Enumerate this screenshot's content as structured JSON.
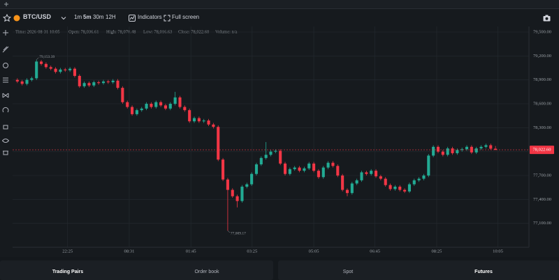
{
  "toolbar": {
    "symbol": "BTC/USD",
    "intervals": [
      "1m",
      "5m",
      "30m",
      "12H"
    ],
    "indicators": "Indicators",
    "fullscreen": "Full screen"
  },
  "info": [
    "Time: 2026-08-31 10:05",
    "Open: 78,036.61",
    "High: 78,070.48",
    "Low: 78,016.63",
    "Close: 78,022.60",
    "Volume: n/a"
  ],
  "bottom_tabs": {
    "left": [
      "Trading Pairs",
      "Order book"
    ],
    "right": [
      "Spot",
      "Futures"
    ]
  },
  "chart_data": {
    "type": "candlestick",
    "up_color": "#22ab94",
    "down_color": "#f23645",
    "grid": true,
    "open": [
      78900,
      78880,
      78850,
      78900,
      78920,
      79130,
      79100,
      79060,
      79040,
      79000,
      79030,
      79020,
      79040,
      78950,
      78820,
      78860,
      78830,
      78870,
      78860,
      78880,
      78870,
      78890,
      78800,
      78620,
      78560,
      78470,
      78520,
      78540,
      78600,
      78560,
      78620,
      78580,
      78540,
      78600,
      78680,
      78560,
      78520,
      78380,
      78420,
      78380,
      78390,
      78340,
      78310,
      77900,
      77650,
      77520,
      77440,
      77380,
      77560,
      77590,
      77720,
      77840,
      77920,
      77960,
      78000,
      78010,
      77850,
      77720,
      77780,
      77800,
      77760,
      77790,
      77850,
      77760,
      77680,
      77800,
      77860,
      77820,
      77700,
      77520,
      77480,
      77600,
      77640,
      77740,
      77720,
      77760,
      77690,
      77660,
      77580,
      77530,
      77560,
      77520,
      77500,
      77590,
      77640,
      77660,
      77700,
      77950,
      78060,
      78000,
      77960,
      78040,
      77980,
      78020,
      78030,
      78060,
      77990,
      78040,
      78060,
      78080,
      78036.61
    ],
    "high": [
      78920,
      78900,
      78920,
      78940,
      79153.39,
      79150,
      79120,
      79080,
      79060,
      79050,
      79050,
      79060,
      79060,
      78970,
      78880,
      78880,
      78890,
      78890,
      78900,
      78900,
      78910,
      78910,
      78820,
      78640,
      78580,
      78540,
      78560,
      78620,
      78620,
      78640,
      78640,
      78600,
      78620,
      78750,
      78700,
      78580,
      78540,
      78440,
      78440,
      78410,
      78410,
      78360,
      78330,
      77920,
      77670,
      77540,
      77460,
      77580,
      77610,
      77740,
      77860,
      77940,
      78120,
      78020,
      78030,
      78030,
      77870,
      77800,
      77820,
      77820,
      77810,
      77870,
      77870,
      77780,
      77820,
      77880,
      77880,
      77840,
      77720,
      77540,
      77620,
      77660,
      77760,
      77760,
      77780,
      77780,
      77710,
      77680,
      77600,
      77580,
      77580,
      77540,
      77610,
      77660,
      77680,
      77720,
      77970,
      78080,
      78080,
      78020,
      78060,
      78060,
      78040,
      78050,
      78080,
      78080,
      78060,
      78080,
      78100,
      78100,
      78070.48
    ],
    "low": [
      78860,
      78830,
      78830,
      78880,
      78900,
      79080,
      79040,
      79020,
      78980,
      78980,
      79000,
      79000,
      78930,
      78800,
      78800,
      78810,
      78810,
      78840,
      78840,
      78850,
      78850,
      78780,
      78600,
      78540,
      78450,
      78450,
      78500,
      78520,
      78540,
      78540,
      78560,
      78520,
      78520,
      78580,
      78540,
      78500,
      78360,
      78360,
      78360,
      78360,
      78320,
      78290,
      77880,
      77630,
      77009.17,
      77420,
      77300,
      77360,
      77540,
      77570,
      77700,
      77820,
      77900,
      77940,
      77980,
      77830,
      77700,
      77700,
      77760,
      77740,
      77740,
      77770,
      77740,
      77660,
      77660,
      77780,
      77800,
      77680,
      77500,
      77440,
      77460,
      77580,
      77620,
      77700,
      77700,
      77670,
      77640,
      77560,
      77510,
      77510,
      77500,
      77480,
      77480,
      77570,
      77620,
      77640,
      77680,
      77930,
      77980,
      77940,
      77940,
      77960,
      77960,
      78000,
      78010,
      77970,
      77970,
      78020,
      78040,
      78020,
      78016.63
    ],
    "close": [
      78880,
      78850,
      78900,
      78920,
      79130,
      79100,
      79060,
      79040,
      79000,
      79030,
      79020,
      79040,
      78950,
      78820,
      78860,
      78830,
      78870,
      78860,
      78880,
      78870,
      78890,
      78800,
      78620,
      78560,
      78470,
      78520,
      78540,
      78600,
      78560,
      78620,
      78580,
      78540,
      78600,
      78680,
      78560,
      78520,
      78380,
      78420,
      78380,
      78390,
      78340,
      78310,
      77900,
      77650,
      77520,
      77440,
      77380,
      77560,
      77590,
      77720,
      77840,
      77920,
      77960,
      78000,
      78010,
      77850,
      77720,
      77780,
      77800,
      77760,
      77790,
      77850,
      77760,
      77680,
      77800,
      77860,
      77820,
      77700,
      77520,
      77480,
      77600,
      77640,
      77740,
      77720,
      77760,
      77690,
      77660,
      77580,
      77530,
      77560,
      77520,
      77500,
      77590,
      77640,
      77660,
      77700,
      77950,
      78060,
      78000,
      77960,
      78040,
      77980,
      78020,
      78030,
      78060,
      77990,
      78040,
      78060,
      78080,
      78036.61,
      78022.6
    ],
    "ylim": [
      76800,
      79570
    ],
    "yticks": [
      {
        "value": 79500,
        "label": "79,500.00"
      },
      {
        "value": 79200,
        "label": "79,200.00"
      },
      {
        "value": 78900,
        "label": "78,900.00"
      },
      {
        "value": 78600,
        "label": "78,600.00"
      },
      {
        "value": 78300,
        "label": "78,300.00"
      },
      {
        "value": 78000,
        "label": "78,000.00"
      },
      {
        "value": 77700,
        "label": "77,700.00"
      },
      {
        "value": 77400,
        "label": "77,400.00"
      },
      {
        "value": 77100,
        "label": "77,100.00"
      }
    ],
    "xlim": [
      0,
      108
    ],
    "xticks": [
      {
        "value": 11.5,
        "label": "22:25"
      },
      {
        "value": 24.4,
        "label": "08:31"
      },
      {
        "value": 37.3,
        "label": "01:45"
      },
      {
        "value": 50.1,
        "label": "03:25"
      },
      {
        "value": 63.0,
        "label": "05:05"
      },
      {
        "value": 75.8,
        "label": "06:45"
      },
      {
        "value": 88.7,
        "label": "08:25"
      },
      {
        "value": 101.5,
        "label": "10:05"
      }
    ],
    "last_price_label": "78,022.60",
    "annotations": [
      {
        "text": "79,153.39"
      },
      {
        "text": "77,009.17"
      }
    ]
  }
}
